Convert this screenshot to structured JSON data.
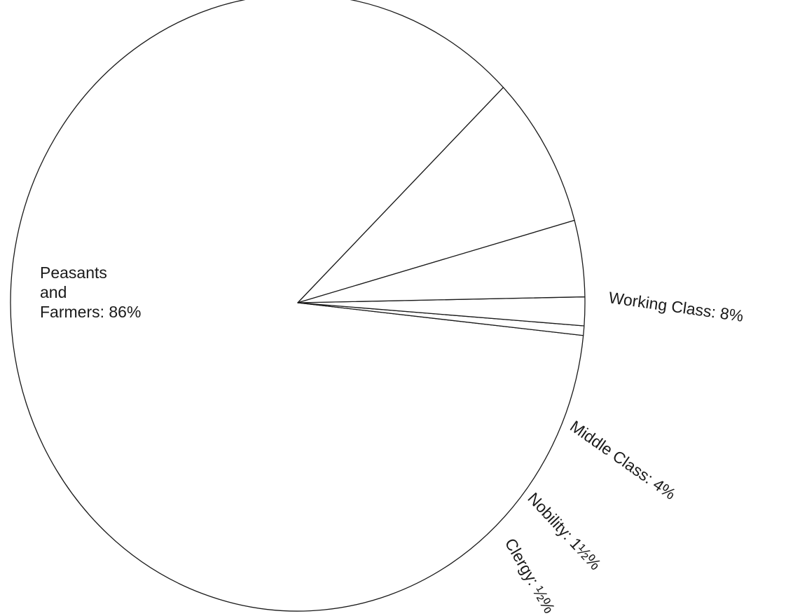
{
  "chart_data": {
    "type": "pie",
    "title": "",
    "slices": [
      {
        "label_lines": [
          "Peasants",
          "and",
          "Farmers:  86%"
        ],
        "value": 86
      },
      {
        "label_lines": [
          "Working Class: 8%"
        ],
        "value": 8
      },
      {
        "label_lines": [
          "Middle Class: 4%"
        ],
        "value": 4
      },
      {
        "label_lines": [
          "Nobility: 1½%"
        ],
        "value": 1.5
      },
      {
        "label_lines": [
          "Clergy: ½%"
        ],
        "value": 0.5
      }
    ],
    "legend": "none"
  }
}
